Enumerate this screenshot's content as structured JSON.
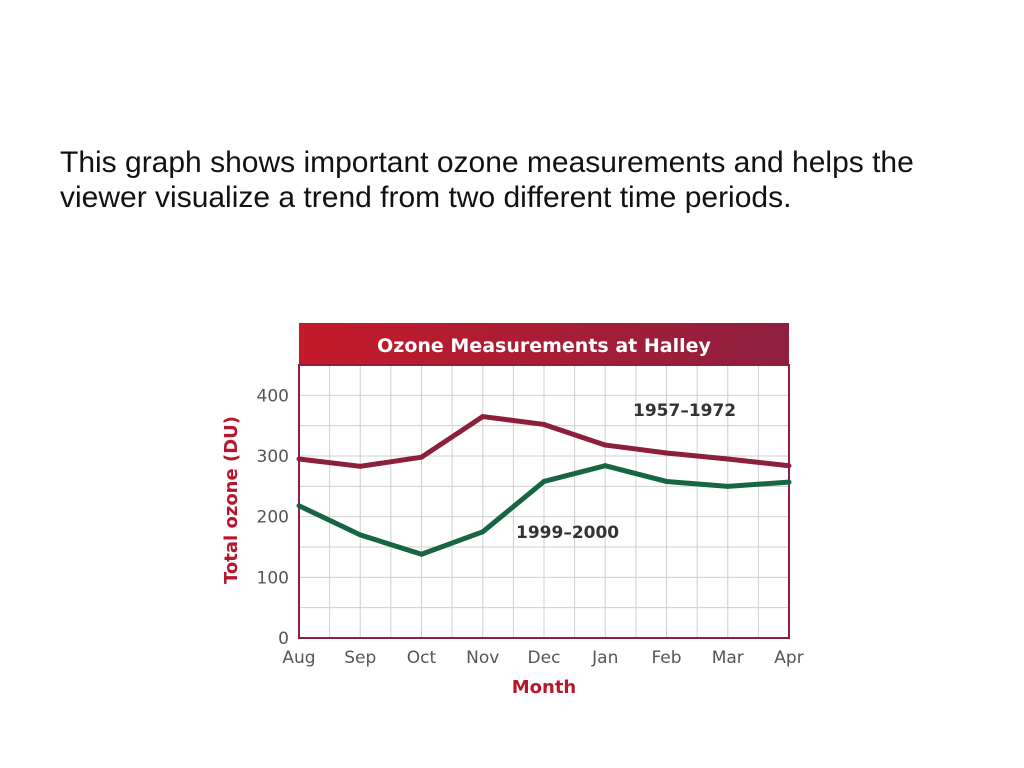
{
  "caption": "This graph shows important ozone measurements and helps the viewer visualize a trend from two different time periods.",
  "chart_data": {
    "type": "line",
    "title": "Ozone Measurements at Halley",
    "xlabel": "Month",
    "ylabel": "Total ozone (DU)",
    "categories": [
      "Aug",
      "Sep",
      "Oct",
      "Nov",
      "Dec",
      "Jan",
      "Feb",
      "Mar",
      "Apr"
    ],
    "yticks": [
      "0",
      "100",
      "200",
      "300",
      "400"
    ],
    "ylim": [
      0,
      450
    ],
    "grid": true,
    "series": [
      {
        "name": "1957–1972",
        "color": "#8c1f3b",
        "values": [
          295,
          283,
          298,
          365,
          352,
          318,
          305,
          295,
          284
        ]
      },
      {
        "name": "1999–2000",
        "color": "#166543",
        "values": [
          218,
          170,
          138,
          175,
          258,
          284,
          258,
          250,
          257
        ]
      }
    ],
    "colors": {
      "title_bar_start": "#c41a2a",
      "title_bar_end": "#8e1f3f",
      "frame": "#8e1f3f",
      "axis_title": "#b5172c"
    }
  }
}
